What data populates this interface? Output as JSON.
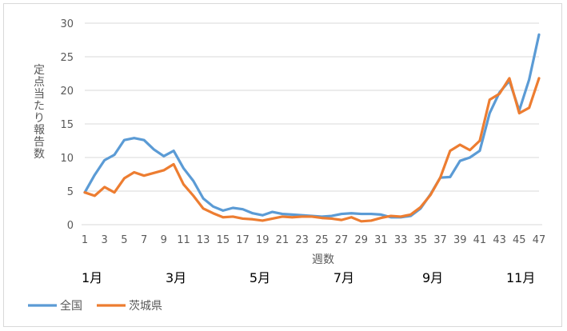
{
  "chart_data": {
    "type": "line",
    "title": "",
    "ylabel": "定点当たり報告数",
    "xlabel": "週数",
    "ylim": [
      0,
      30
    ],
    "yticks": [
      0,
      5,
      10,
      15,
      20,
      25,
      30
    ],
    "xlim": [
      1,
      47
    ],
    "xticks": [
      1,
      3,
      5,
      7,
      9,
      11,
      13,
      15,
      17,
      19,
      21,
      23,
      25,
      27,
      29,
      31,
      33,
      35,
      37,
      39,
      41,
      43,
      45,
      47
    ],
    "month_labels": [
      {
        "label": "1月",
        "week": 1
      },
      {
        "label": "3月",
        "week": 9.5
      },
      {
        "label": "5月",
        "week": 18
      },
      {
        "label": "7月",
        "week": 26.5
      },
      {
        "label": "9月",
        "week": 35.5
      },
      {
        "label": "11月",
        "week": 44
      }
    ],
    "grid": true,
    "legend_position": "bottom-left",
    "x": [
      1,
      2,
      3,
      4,
      5,
      6,
      7,
      8,
      9,
      10,
      11,
      12,
      13,
      14,
      15,
      16,
      17,
      18,
      19,
      20,
      21,
      22,
      23,
      24,
      25,
      26,
      27,
      28,
      29,
      30,
      31,
      32,
      33,
      34,
      35,
      36,
      37,
      38,
      39,
      40,
      41,
      42,
      43,
      44,
      45,
      46,
      47
    ],
    "series": [
      {
        "name": "全国",
        "color": "#5B9BD5",
        "values": [
          4.8,
          7.4,
          9.6,
          10.4,
          12.6,
          12.9,
          12.6,
          11.2,
          10.2,
          11.0,
          8.4,
          6.5,
          3.9,
          2.7,
          2.1,
          2.5,
          2.3,
          1.7,
          1.4,
          1.9,
          1.6,
          1.5,
          1.4,
          1.3,
          1.2,
          1.3,
          1.6,
          1.7,
          1.6,
          1.6,
          1.5,
          1.1,
          1.1,
          1.3,
          2.4,
          4.5,
          7.0,
          7.1,
          9.5,
          10.0,
          11.0,
          16.6,
          19.7,
          21.4,
          17.0,
          21.6,
          28.3
        ]
      },
      {
        "name": "茨城県",
        "color": "#ED7D31",
        "values": [
          4.8,
          4.3,
          5.6,
          4.8,
          6.9,
          7.8,
          7.3,
          7.7,
          8.1,
          9.0,
          6.0,
          4.3,
          2.4,
          1.7,
          1.1,
          1.2,
          0.9,
          0.8,
          0.6,
          0.9,
          1.2,
          1.1,
          1.2,
          1.2,
          1.0,
          0.9,
          0.7,
          1.1,
          0.5,
          0.6,
          1.0,
          1.3,
          1.2,
          1.5,
          2.6,
          4.4,
          7.0,
          11.0,
          11.9,
          11.1,
          12.5,
          18.6,
          19.5,
          21.8,
          16.6,
          17.4,
          21.8
        ]
      }
    ]
  }
}
